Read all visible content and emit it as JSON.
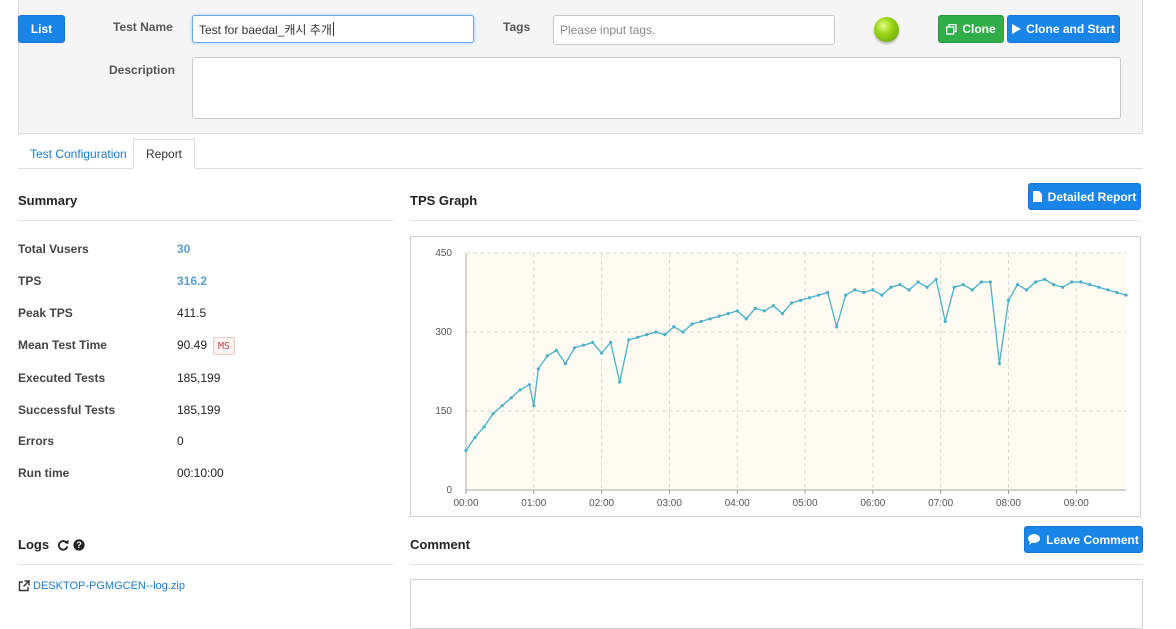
{
  "header": {
    "list_button": "List",
    "test_name_label": "Test Name",
    "test_name_value": "Test for baedal_캐시 추개",
    "tags_label": "Tags",
    "tags_placeholder": "Please input tags.",
    "clone_button": "Clone",
    "clone_start_button": "Clone and Start",
    "description_label": "Description",
    "description_value": "",
    "status_color": "#7cc400"
  },
  "tabs": [
    {
      "label": "Test Configuration",
      "active": false
    },
    {
      "label": "Report",
      "active": true
    }
  ],
  "summary": {
    "title": "Summary",
    "items": [
      {
        "label": "Total Vusers",
        "value": "30"
      },
      {
        "label": "TPS",
        "value": "316.2"
      },
      {
        "label": "Peak TPS",
        "value": "411.5"
      },
      {
        "label": "Mean Test Time",
        "value": "90.49",
        "unit": "MS"
      },
      {
        "label": "Executed Tests",
        "value": "185,199"
      },
      {
        "label": "Successful Tests",
        "value": "185,199"
      },
      {
        "label": "Errors",
        "value": "0"
      },
      {
        "label": "Run time",
        "value": "00:10:00"
      }
    ]
  },
  "graph": {
    "title": "TPS Graph",
    "detailed_report_button": "Detailed Report"
  },
  "logs": {
    "title": "Logs",
    "file_link": "DESKTOP-PGMGCEN--log.zip"
  },
  "comment": {
    "title": "Comment",
    "leave_comment_button": "Leave Comment"
  },
  "chart_data": {
    "type": "line",
    "title": "",
    "xlabel": "",
    "ylabel": "",
    "ylim": [
      0,
      450
    ],
    "yticks": [
      "0",
      "150",
      "300",
      "450"
    ],
    "xticks": [
      "00:00",
      "01:00",
      "02:00",
      "03:00",
      "04:00",
      "05:00",
      "06:00",
      "07:00",
      "08:00",
      "09:00"
    ],
    "xlim": [
      0,
      584
    ],
    "grid": true,
    "color": "#4ab0c8",
    "background": "#fdfbf2",
    "series": [
      {
        "x": [
          0,
          8,
          16,
          24,
          32,
          40,
          48,
          56,
          60,
          64,
          72,
          80,
          88,
          96,
          104,
          112,
          120,
          128,
          136,
          144,
          152,
          160,
          168,
          176,
          184,
          192,
          200,
          208,
          216,
          224,
          232,
          240,
          248,
          256,
          264,
          272,
          280,
          288,
          296,
          304,
          312,
          320,
          328,
          336,
          344,
          352,
          360,
          368,
          376,
          384,
          392,
          400,
          408,
          416,
          424,
          432,
          440,
          448,
          456,
          464,
          472,
          480,
          488,
          496,
          504,
          512,
          520,
          528,
          536,
          544,
          552,
          560,
          568,
          576,
          584
        ],
        "y": [
          75,
          100,
          120,
          145,
          160,
          175,
          190,
          200,
          160,
          230,
          255,
          265,
          240,
          270,
          275,
          280,
          260,
          280,
          205,
          285,
          290,
          295,
          300,
          295,
          310,
          300,
          315,
          320,
          325,
          330,
          335,
          340,
          325,
          345,
          340,
          350,
          335,
          355,
          360,
          365,
          370,
          375,
          310,
          370,
          380,
          375,
          380,
          370,
          385,
          390,
          380,
          395,
          385,
          400,
          320,
          385,
          390,
          380,
          395,
          395,
          240,
          360,
          390,
          380,
          395,
          400,
          390,
          385,
          395,
          395,
          390,
          385,
          380,
          375,
          370
        ]
      }
    ]
  }
}
